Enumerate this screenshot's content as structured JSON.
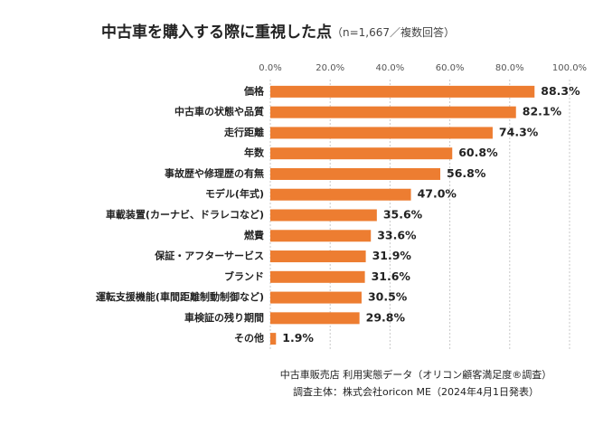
{
  "chart_data": {
    "type": "bar",
    "orientation": "horizontal",
    "title": "中古車を購入する際に重視した点",
    "subtitle": "（n=1,667／複数回答）",
    "categories": [
      "価格",
      "中古車の状態や品質",
      "走行距離",
      "年数",
      "事故歴や修理歴の有無",
      "モデル(年式)",
      "車載装置(カーナビ、ドラレコなど)",
      "燃費",
      "保証・アフターサービス",
      "ブランド",
      "運転支援機能(車間距離制動制御など)",
      "車検証の残り期間",
      "その他"
    ],
    "values": [
      88.3,
      82.1,
      74.3,
      60.8,
      56.8,
      47.0,
      35.6,
      33.6,
      31.9,
      31.6,
      30.5,
      29.8,
      1.9
    ],
    "value_labels": [
      "88.3%",
      "82.1%",
      "74.3%",
      "60.8%",
      "56.8%",
      "47.0%",
      "35.6%",
      "33.6%",
      "31.9%",
      "31.6%",
      "30.5%",
      "29.8%",
      "1.9%"
    ],
    "color": "#ed7d31",
    "xlim": [
      0,
      100
    ],
    "xticks": [
      {
        "value": 0,
        "label": "0.0%"
      },
      {
        "value": 20,
        "label": "20.0%"
      },
      {
        "value": 40,
        "label": "40.0%"
      },
      {
        "value": 60,
        "label": "60.0%"
      },
      {
        "value": 80,
        "label": "80.0%"
      },
      {
        "value": 100,
        "label": "100.0%"
      }
    ],
    "grid": true,
    "source": [
      "中古車販売店 利用実態データ（オリコン顧客満足度®調査）",
      "調査主体：株式会社oricon ME（2024年4月1日発表）"
    ]
  }
}
